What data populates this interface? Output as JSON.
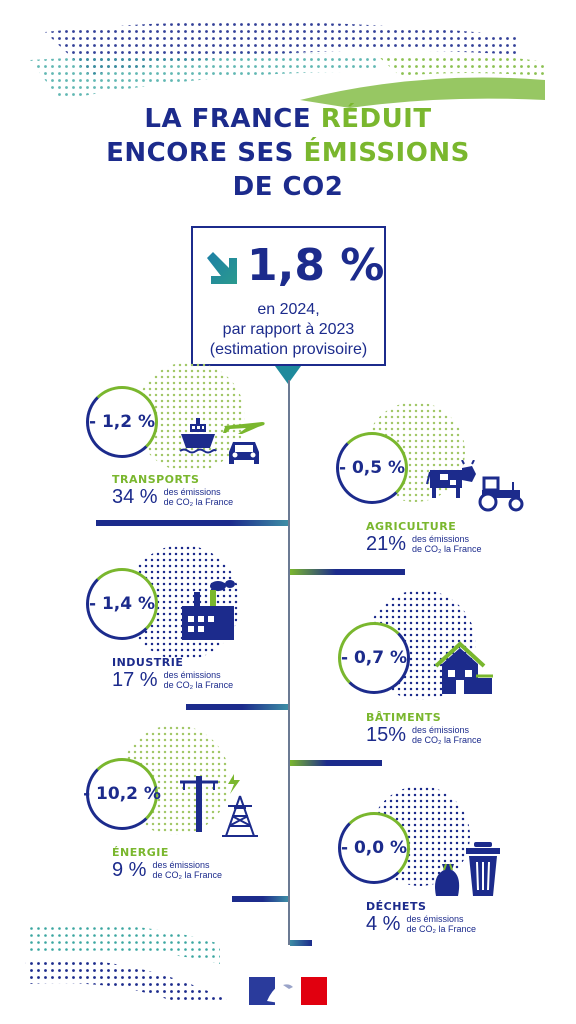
{
  "title": {
    "line1_part1": "LA FRANCE",
    "line1_part2": "RÉDUIT",
    "line2_part1": "ENCORE SES",
    "line2_part2": "ÉMISSIONS",
    "line3": "DE CO2"
  },
  "headline": {
    "value": "1,8 %",
    "line1": "en 2024,",
    "line2": "par rapport à 2023",
    "line3": "(estimation provisoire)"
  },
  "share_desc": {
    "line1": "des émissions",
    "line2": "de CO₂ la France"
  },
  "sectors": [
    {
      "name": "TRANSPORTS",
      "change": "- 1,2 %",
      "share": "34 %",
      "share_fraction": 0.34
    },
    {
      "name": "AGRICULTURE",
      "change": "- 0,5 %",
      "share": "21%",
      "share_fraction": 0.21
    },
    {
      "name": "INDUSTRIE",
      "change": "- 1,4 %",
      "share": "17 %",
      "share_fraction": 0.17
    },
    {
      "name": "BÂTIMENTS",
      "change": "- 0,7 %",
      "share": "15%",
      "share_fraction": 0.15
    },
    {
      "name": "ÉNERGIE",
      "change": "- 10,2 %",
      "share": "9 %",
      "share_fraction": 0.09
    },
    {
      "name": "DÉCHETS",
      "change": "- 0,0 %",
      "share": "4 %",
      "share_fraction": 0.04
    }
  ],
  "colors": {
    "navy": "#1c2b8c",
    "green": "#7ab72e",
    "timeline": "#6b7a93",
    "flag_blue": "#2a3b9c",
    "flag_red": "#e1000f"
  }
}
